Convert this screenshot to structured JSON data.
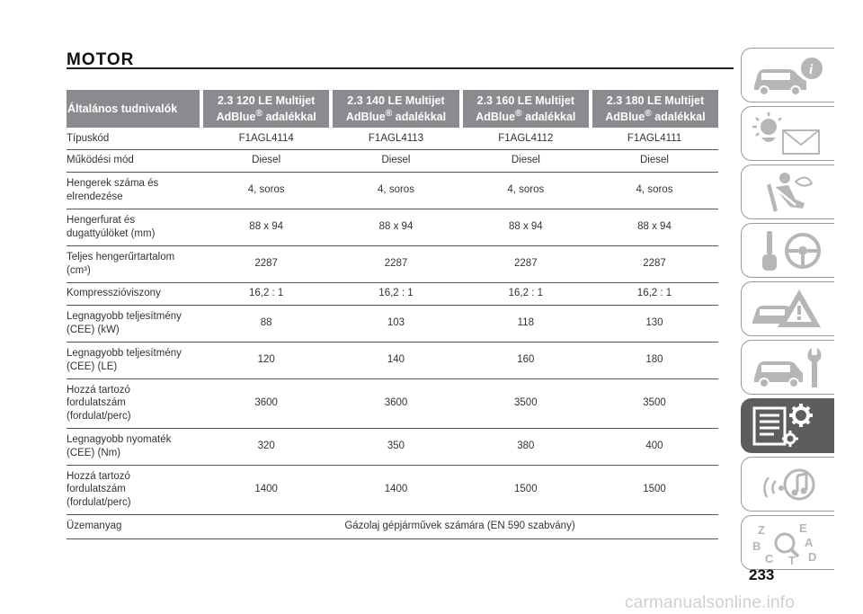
{
  "section_title": "MOTOR",
  "table": {
    "header_label": "Általános tudnivalók",
    "columns": [
      {
        "line1": "2.3 120 LE Multijet",
        "line2": "AdBlue",
        "sup": "®",
        "line2b": " adalékkal"
      },
      {
        "line1": "2.3 140 LE Multijet",
        "line2": "AdBlue",
        "sup": "®",
        "line2b": " adalékkal"
      },
      {
        "line1": "2.3 160 LE Multijet",
        "line2": "AdBlue",
        "sup": "®",
        "line2b": " adalékkal"
      },
      {
        "line1": "2.3 180 LE Multijet",
        "line2": "AdBlue",
        "sup": "®",
        "line2b": " adalékkal"
      }
    ],
    "rows": [
      {
        "label": [
          "Típuskód"
        ],
        "values": [
          "F1AGL4114",
          "F1AGL4113",
          "F1AGL4112",
          "F1AGL4111"
        ]
      },
      {
        "label": [
          "Működési mód"
        ],
        "values": [
          "Diesel",
          "Diesel",
          "Diesel",
          "Diesel"
        ]
      },
      {
        "label": [
          "Hengerek száma és",
          "elrendezése"
        ],
        "values": [
          "4, soros",
          "4, soros",
          "4, soros",
          "4, soros"
        ]
      },
      {
        "label": [
          "Hengerfurat és",
          "dugattyúlöket (mm)"
        ],
        "values": [
          "88 x 94",
          "88 x 94",
          "88 x 94",
          "88 x 94"
        ]
      },
      {
        "label": [
          "Teljes hengerűrtartalom",
          "(cm³)"
        ],
        "values": [
          "2287",
          "2287",
          "2287",
          "2287"
        ]
      },
      {
        "label": [
          "Kompresszióviszony"
        ],
        "values": [
          "16,2 : 1",
          "16,2 : 1",
          "16,2 : 1",
          "16,2 : 1"
        ]
      },
      {
        "label": [
          "Legnagyobb teljesítmény",
          "(CEE) (kW)"
        ],
        "values": [
          "88",
          "103",
          "118",
          "130"
        ]
      },
      {
        "label": [
          "Legnagyobb teljesítmény",
          "(CEE) (LE)"
        ],
        "values": [
          "120",
          "140",
          "160",
          "180"
        ]
      },
      {
        "label": [
          "Hozzá tartozó",
          "fordulatszám",
          "(fordulat/perc)"
        ],
        "values": [
          "3600",
          "3600",
          "3500",
          "3500"
        ]
      },
      {
        "label": [
          "Legnagyobb nyomaték",
          "(CEE) (Nm)"
        ],
        "values": [
          "320",
          "350",
          "380",
          "400"
        ]
      },
      {
        "label": [
          "Hozzá tartozó",
          "fordulatszám",
          "(fordulat/perc)"
        ],
        "values": [
          "1400",
          "1400",
          "1500",
          "1500"
        ]
      }
    ],
    "fuel_row": {
      "label": "Üzemanyag",
      "value": "Gázolaj gépjárművek számára (EN 590 szabvány)"
    }
  },
  "sidebar": {
    "tabs": [
      {
        "icon": "car-info-icon",
        "active": false
      },
      {
        "icon": "lights-envelope-icon",
        "active": false
      },
      {
        "icon": "seat-airbag-icon",
        "active": false
      },
      {
        "icon": "key-steering-wheel-icon",
        "active": false
      },
      {
        "icon": "car-breakdown-warning-icon",
        "active": false
      },
      {
        "icon": "car-maintenance-wrench-icon",
        "active": false
      },
      {
        "icon": "technical-data-gears-icon",
        "active": true
      },
      {
        "icon": "multimedia-music-icon",
        "active": false
      },
      {
        "icon": "index-letters-icon",
        "active": false
      }
    ],
    "index_letters": [
      "Z",
      "E",
      "B",
      "A",
      "C",
      "D",
      "T"
    ]
  },
  "page_number": "233",
  "watermark": "carmanualsonline.info"
}
